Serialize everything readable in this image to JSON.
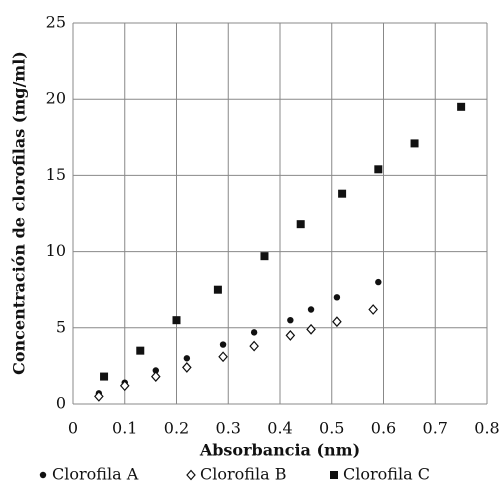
{
  "chart_data": {
    "type": "scatter",
    "xlabel": "Absorbancia (nm)",
    "ylabel": "Concentración de clorofilas (mg/ml)",
    "xlim": [
      0,
      0.8
    ],
    "xticks": [
      0,
      0.1,
      0.2,
      0.3,
      0.4,
      0.5,
      0.6,
      0.7,
      0.8
    ],
    "ylim": [
      0,
      25
    ],
    "yticks": [
      0,
      5,
      10,
      15,
      20,
      25
    ],
    "grid": true,
    "legend": "bottom",
    "series": [
      {
        "name": "Clorofila A",
        "marker": "circle",
        "color": "#111111",
        "x": [
          0.05,
          0.1,
          0.16,
          0.22,
          0.29,
          0.35,
          0.42,
          0.46,
          0.51,
          0.59
        ],
        "values": [
          0.7,
          1.4,
          2.2,
          3.0,
          3.9,
          4.7,
          5.5,
          6.2,
          7.0,
          8.0
        ]
      },
      {
        "name": "Clorofila B",
        "marker": "diamond",
        "color": "#111111",
        "x": [
          0.05,
          0.1,
          0.16,
          0.22,
          0.29,
          0.35,
          0.42,
          0.46,
          0.51,
          0.58
        ],
        "values": [
          0.5,
          1.2,
          1.8,
          2.4,
          3.1,
          3.8,
          4.5,
          4.9,
          5.4,
          6.2
        ]
      },
      {
        "name": "Clorofila C",
        "marker": "square",
        "color": "#111111",
        "x": [
          0.06,
          0.13,
          0.2,
          0.28,
          0.37,
          0.44,
          0.52,
          0.59,
          0.66,
          0.75
        ],
        "values": [
          1.8,
          3.5,
          5.5,
          7.5,
          9.7,
          11.8,
          13.8,
          15.4,
          17.1,
          19.5
        ]
      }
    ]
  }
}
